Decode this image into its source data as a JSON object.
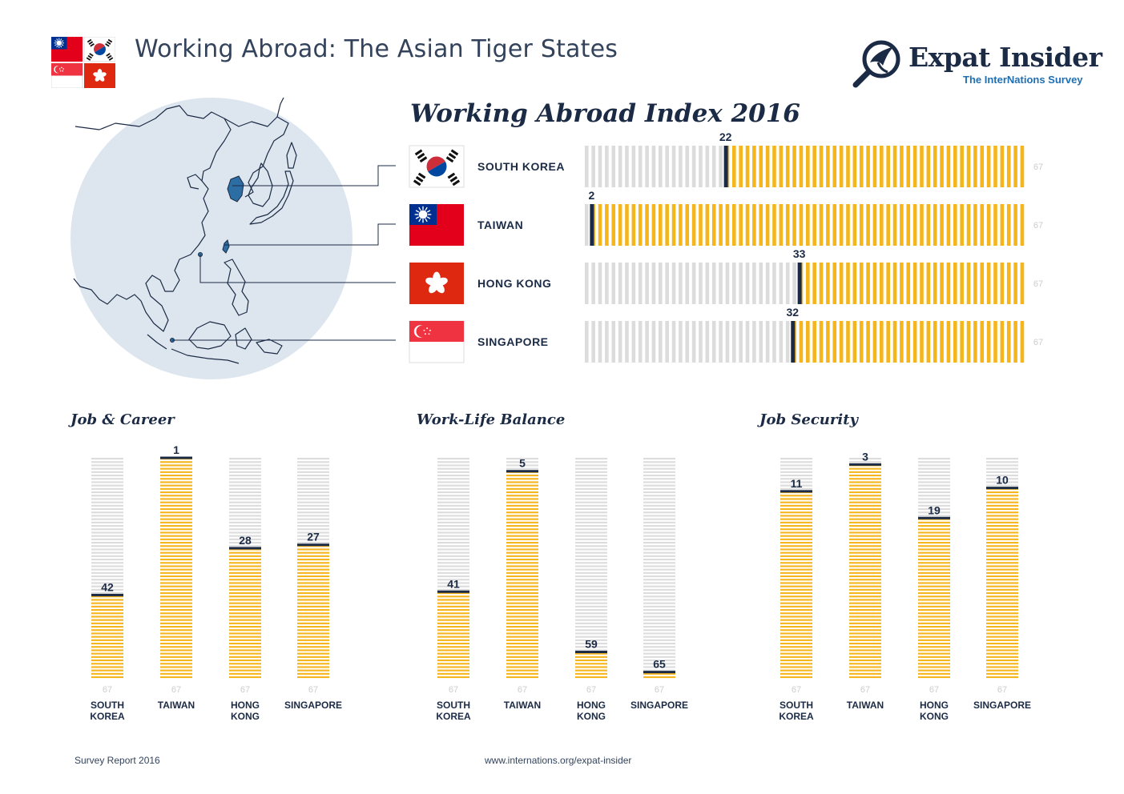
{
  "header": {
    "title": "Working Abroad: The Asian Tiger States",
    "brand_name": "Expat Insider",
    "brand_tagline": "The InterNations Survey"
  },
  "colors": {
    "accent": "#f5b51c",
    "empty": "#dcdcdc",
    "navy": "#1c2b45",
    "map_circle": "#dde6ef",
    "map_highlight": "#2c6ea3",
    "muted_label": "#cccccc"
  },
  "flags": [
    "taiwan-flag-icon",
    "south-korea-flag-icon",
    "singapore-flag-icon",
    "hong-kong-flag-icon"
  ],
  "chart_data": [
    {
      "type": "bar",
      "orientation": "horizontal",
      "title": "Working Abroad Index 2016",
      "categories": [
        "SOUTH KOREA",
        "TAIWAN",
        "HONG KONG",
        "SINGAPORE"
      ],
      "flag_icons": [
        "south-korea-flag-icon",
        "taiwan-flag-icon",
        "hong-kong-flag-icon",
        "singapore-flag-icon"
      ],
      "values": [
        22,
        2,
        33,
        32
      ],
      "max_label": "67",
      "scale": "rank 1 (best) to 67 (worst); filled portion = 67 - rank",
      "xlim": [
        1,
        67
      ]
    },
    {
      "type": "bar",
      "orientation": "vertical",
      "title": "Job & Career",
      "categories": [
        "SOUTH KOREA",
        "TAIWAN",
        "HONG KONG",
        "SINGAPORE"
      ],
      "values": [
        42,
        1,
        28,
        27
      ],
      "max_label": "67",
      "ylim": [
        1,
        67
      ]
    },
    {
      "type": "bar",
      "orientation": "vertical",
      "title": "Work-Life Balance",
      "categories": [
        "SOUTH KOREA",
        "TAIWAN",
        "HONG KONG",
        "SINGAPORE"
      ],
      "values": [
        41,
        5,
        59,
        65
      ],
      "max_label": "67",
      "ylim": [
        1,
        67
      ]
    },
    {
      "type": "bar",
      "orientation": "vertical",
      "title": "Job Security",
      "categories": [
        "SOUTH KOREA",
        "TAIWAN",
        "HONG KONG",
        "SINGAPORE"
      ],
      "values": [
        11,
        3,
        19,
        10
      ],
      "max_label": "67",
      "ylim": [
        1,
        67
      ]
    }
  ],
  "footer": {
    "left": "Survey Report 2016",
    "center": "www.internations.org/expat-insider"
  }
}
